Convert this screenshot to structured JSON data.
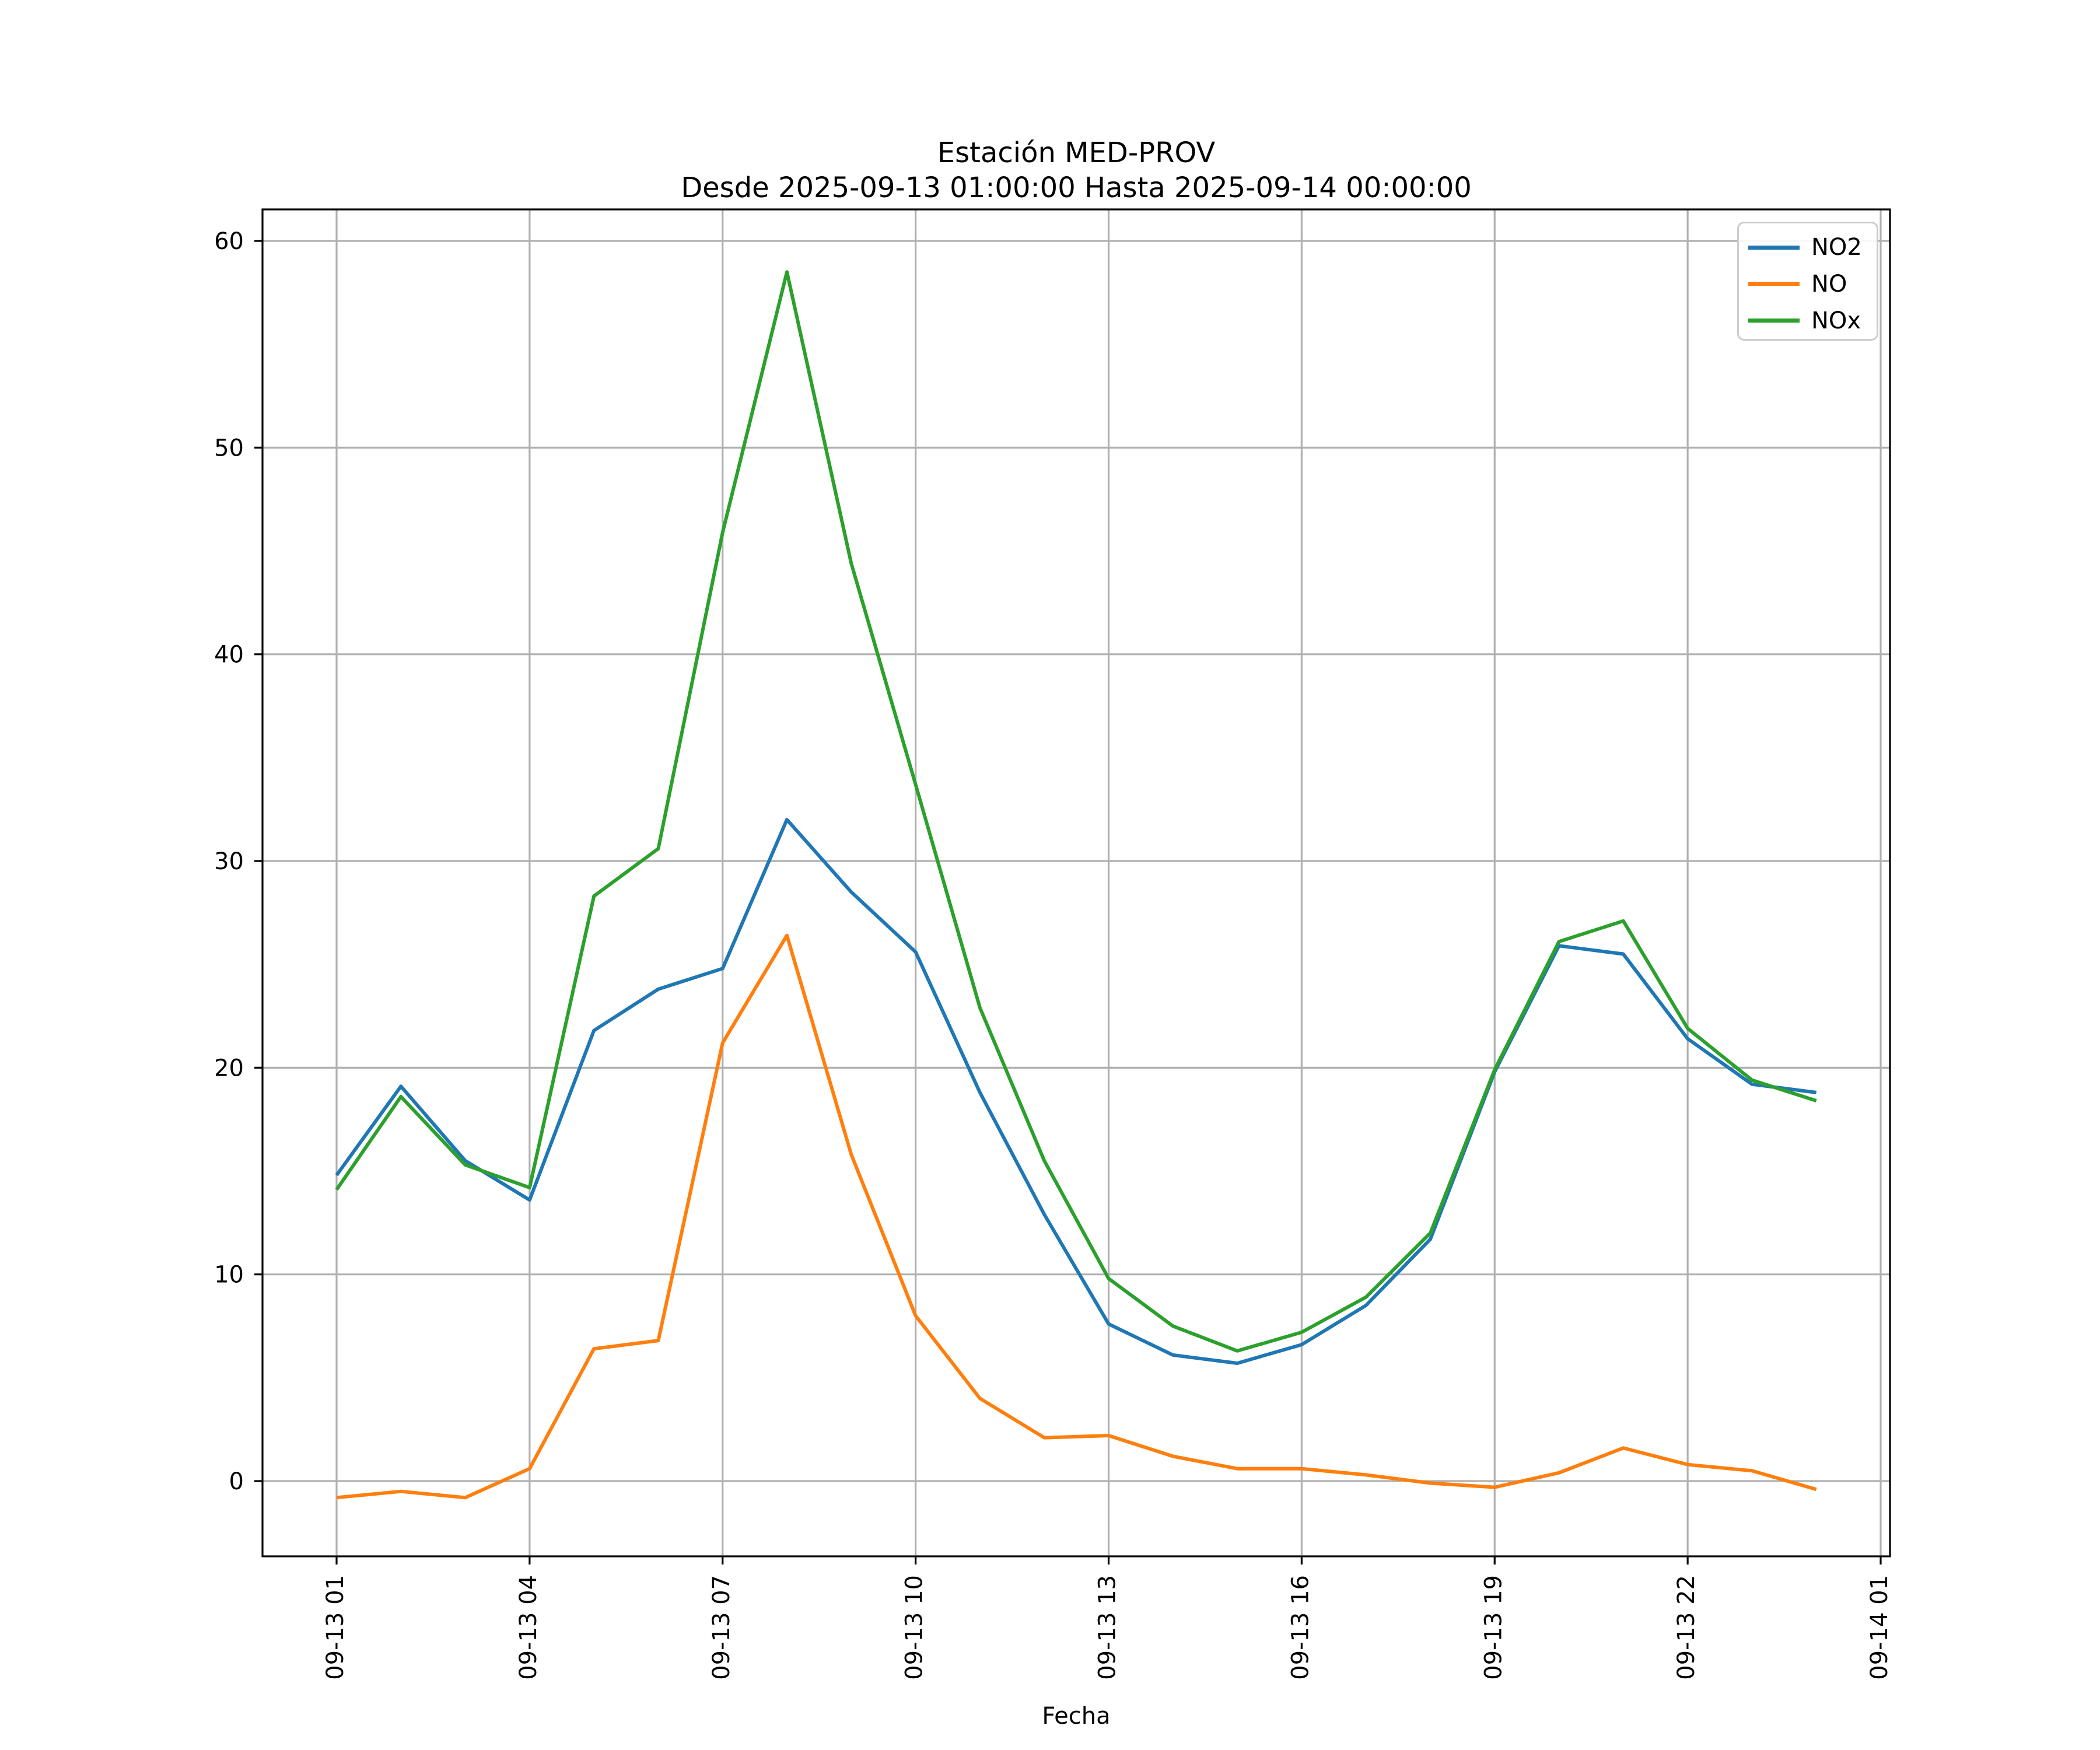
{
  "figure": {
    "title_line1": "Estación MED-PROV",
    "title_line2": "Desde 2025-09-13 01:00:00 Hasta 2025-09-14 00:00:00"
  },
  "chart_data": {
    "type": "line",
    "title": "Estación MED-PROV",
    "subtitle": "Desde 2025-09-13 01:00:00 Hasta 2025-09-14 00:00:00",
    "xlabel": "Fecha",
    "ylabel": "",
    "grid": true,
    "legend_position": "upper right",
    "ylim": [
      -3.6,
      61.5
    ],
    "yticks": [
      0,
      10,
      20,
      30,
      40,
      50,
      60
    ],
    "xtick_labels": [
      "09-13 01",
      "09-13 04",
      "09-13 07",
      "09-13 10",
      "09-13 13",
      "09-13 16",
      "09-13 19",
      "09-13 22",
      "09-14 01"
    ],
    "xtick_positions": [
      0,
      3,
      6,
      9,
      12,
      15,
      18,
      21,
      24
    ],
    "x": [
      "09-13 01",
      "09-13 02",
      "09-13 03",
      "09-13 04",
      "09-13 05",
      "09-13 06",
      "09-13 07",
      "09-13 08",
      "09-13 09",
      "09-13 10",
      "09-13 11",
      "09-13 12",
      "09-13 13",
      "09-13 14",
      "09-13 15",
      "09-13 16",
      "09-13 17",
      "09-13 18",
      "09-13 19",
      "09-13 20",
      "09-13 21",
      "09-13 22",
      "09-13 23",
      "09-14 00"
    ],
    "series": [
      {
        "name": "NO2",
        "color": "#1f77b4",
        "values": [
          14.8,
          19.1,
          15.5,
          13.6,
          21.8,
          23.8,
          24.8,
          32.0,
          28.5,
          25.6,
          18.8,
          12.9,
          7.6,
          6.1,
          5.7,
          6.6,
          8.5,
          11.7,
          19.8,
          25.9,
          25.5,
          21.4,
          19.2,
          18.8
        ]
      },
      {
        "name": "NO",
        "color": "#ff7f0e",
        "values": [
          -0.8,
          -0.5,
          -0.8,
          0.6,
          6.4,
          6.8,
          21.2,
          26.4,
          15.8,
          8.0,
          4.0,
          2.1,
          2.2,
          1.2,
          0.6,
          0.6,
          0.3,
          -0.1,
          -0.3,
          0.4,
          1.6,
          0.8,
          0.5,
          -0.4
        ]
      },
      {
        "name": "NOx",
        "color": "#2ca02c",
        "values": [
          14.1,
          18.6,
          15.3,
          14.2,
          28.3,
          30.6,
          45.9,
          58.5,
          44.4,
          33.7,
          22.9,
          15.5,
          9.8,
          7.5,
          6.3,
          7.2,
          8.9,
          12.0,
          19.9,
          26.1,
          27.1,
          21.9,
          19.4,
          18.4
        ]
      }
    ],
    "style": {
      "grid_color": "#b0b0b0",
      "spine_color": "#000000",
      "background": "#ffffff"
    }
  }
}
